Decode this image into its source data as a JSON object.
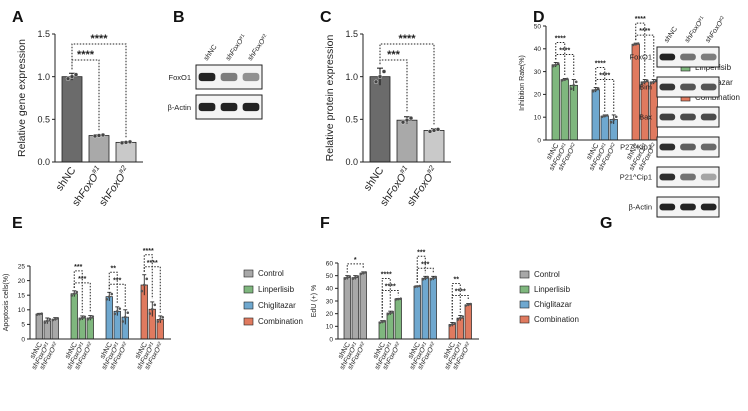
{
  "colors": {
    "dark_bar": "#6b6b6b",
    "mid_bar": "#a9a9a9",
    "light_bar": "#c9c9c9",
    "control": "#a8a8a8",
    "linperlisib": "#7fb77e",
    "chiglitazar": "#6fa8cf",
    "combination": "#e07a5f",
    "axis": "#222222"
  },
  "chart_data": [
    {
      "panel": "A",
      "type": "bar",
      "ylabel": "Relative gene expression",
      "ylim": [
        0,
        1.5
      ],
      "yticks": [
        "0.0",
        "0.5",
        "1.0",
        "1.5"
      ],
      "categories": [
        {
          "prefix": "sh",
          "gene": "NC",
          "sup": ""
        },
        {
          "prefix": "sh",
          "gene": "FoxO",
          "sup": "#1"
        },
        {
          "prefix": "sh",
          "gene": "FoxO",
          "sup": "#2"
        }
      ],
      "values": [
        1.0,
        0.31,
        0.23
      ],
      "errors": [
        0.04,
        0.01,
        0.01
      ],
      "significance": [
        {
          "from": 0,
          "to": 1,
          "label": "****"
        },
        {
          "from": 0,
          "to": 2,
          "label": "****"
        }
      ]
    },
    {
      "panel": "C",
      "type": "bar",
      "ylabel": "Relative protein expression",
      "ylim": [
        0,
        1.5
      ],
      "yticks": [
        "0.0",
        "0.5",
        "1.0",
        "1.5"
      ],
      "categories": [
        {
          "prefix": "sh",
          "gene": "NC",
          "sup": ""
        },
        {
          "prefix": "sh",
          "gene": "FoxO",
          "sup": "#1"
        },
        {
          "prefix": "sh",
          "gene": "FoxO",
          "sup": "#2"
        }
      ],
      "values": [
        1.0,
        0.49,
        0.37
      ],
      "errors": [
        0.1,
        0.04,
        0.02
      ],
      "significance": [
        {
          "from": 0,
          "to": 1,
          "label": "***"
        },
        {
          "from": 0,
          "to": 2,
          "label": "****"
        }
      ]
    },
    {
      "panel": "D",
      "type": "bar",
      "ylabel": "Inhibition Rate(%)",
      "ylim": [
        0,
        50
      ],
      "yticks": [
        "0",
        "10",
        "20",
        "30",
        "40",
        "50"
      ],
      "groups": [
        "Linperlisib",
        "Chiglitazar",
        "Combination"
      ],
      "categories": [
        {
          "prefix": "sh",
          "gene": "NC",
          "sup": ""
        },
        {
          "prefix": "sh",
          "gene": "FoxO",
          "sup": "#1"
        },
        {
          "prefix": "sh",
          "gene": "FoxO",
          "sup": "#2"
        }
      ],
      "series": [
        {
          "name": "Linperlisib",
          "values": [
            33,
            26.5,
            24
          ],
          "errors": [
            1,
            0.5,
            2.5
          ]
        },
        {
          "name": "Chiglitazar",
          "values": [
            22,
            10.5,
            9
          ],
          "errors": [
            1,
            0.5,
            2
          ]
        },
        {
          "name": "Combination",
          "values": [
            42,
            25.5,
            25.5
          ],
          "errors": [
            0.5,
            1,
            1
          ]
        }
      ],
      "significance": [
        {
          "group": 0,
          "pairs": [
            [
              0,
              1,
              "****"
            ],
            [
              0,
              2,
              "****"
            ]
          ]
        },
        {
          "group": 1,
          "pairs": [
            [
              0,
              1,
              "****"
            ],
            [
              0,
              2,
              "****"
            ]
          ]
        },
        {
          "group": 2,
          "pairs": [
            [
              0,
              1,
              "****"
            ],
            [
              0,
              2,
              "****"
            ]
          ]
        }
      ],
      "legend": [
        "Linperlisib",
        "Chiglitazar",
        "Combination"
      ]
    },
    {
      "panel": "E",
      "type": "bar",
      "ylabel": "Apoptosis cells(%)",
      "ylim": [
        0,
        25
      ],
      "yticks": [
        "0",
        "5",
        "10",
        "15",
        "20",
        "25"
      ],
      "groups": [
        "Control",
        "Linperlisib",
        "Chiglitazar",
        "Combination"
      ],
      "categories": [
        {
          "prefix": "sh",
          "gene": "NC",
          "sup": ""
        },
        {
          "prefix": "sh",
          "gene": "FoxO",
          "sup": "#1"
        },
        {
          "prefix": "sh",
          "gene": "FoxO",
          "sup": "#2"
        }
      ],
      "series": [
        {
          "name": "Control",
          "values": [
            8.5,
            6.2,
            6.8
          ],
          "errors": [
            0.3,
            1.0,
            0.5
          ]
        },
        {
          "name": "Linperlisib",
          "values": [
            15.5,
            7.2,
            7.2
          ],
          "errors": [
            1.0,
            0.7,
            0.8
          ]
        },
        {
          "name": "Chiglitazar",
          "values": [
            14.5,
            9.5,
            7.5
          ],
          "errors": [
            1.5,
            1.5,
            2.5
          ]
        },
        {
          "name": "Combination",
          "values": [
            18.5,
            10.2,
            6.7
          ],
          "errors": [
            3.5,
            2.5,
            1.2
          ]
        }
      ],
      "significance": [
        {
          "group": 1,
          "pairs": [
            [
              0,
              1,
              "***"
            ],
            [
              0,
              2,
              "***"
            ]
          ]
        },
        {
          "group": 2,
          "pairs": [
            [
              0,
              1,
              "**"
            ],
            [
              0,
              2,
              "***"
            ]
          ]
        },
        {
          "group": 3,
          "pairs": [
            [
              0,
              1,
              "****"
            ],
            [
              0,
              2,
              "****"
            ]
          ]
        }
      ],
      "legend": [
        "Control",
        "Linperlisib",
        "Chiglitazar",
        "Combination"
      ]
    },
    {
      "panel": "F",
      "type": "bar",
      "ylabel": "EdU (+) %",
      "ylim": [
        0,
        60
      ],
      "yticks": [
        "0",
        "10",
        "20",
        "30",
        "40",
        "50",
        "60"
      ],
      "groups": [
        "Control",
        "Linperlisib",
        "Chiglitazar",
        "Combination"
      ],
      "categories": [
        {
          "prefix": "sh",
          "gene": "NC",
          "sup": ""
        },
        {
          "prefix": "sh",
          "gene": "FoxO",
          "sup": "#1"
        },
        {
          "prefix": "sh",
          "gene": "FoxO",
          "sup": "#2"
        }
      ],
      "series": [
        {
          "name": "Control",
          "values": [
            48.5,
            48.5,
            52
          ],
          "errors": [
            1.5,
            1.5,
            1
          ]
        },
        {
          "name": "Linperlisib",
          "values": [
            13.5,
            20.5,
            31.5
          ],
          "errors": [
            1,
            1.5,
            0.5
          ]
        },
        {
          "name": "Chiglitazar",
          "values": [
            41.5,
            48,
            48
          ],
          "errors": [
            0.5,
            1.5,
            1.5
          ]
        },
        {
          "name": "Combination",
          "values": [
            11.5,
            16.5,
            27
          ],
          "errors": [
            1.5,
            2,
            1
          ]
        }
      ],
      "significance": [
        {
          "group": 0,
          "pairs": [
            [
              0,
              2,
              "*"
            ]
          ]
        },
        {
          "group": 1,
          "pairs": [
            [
              0,
              1,
              "****"
            ],
            [
              0,
              2,
              "****"
            ]
          ]
        },
        {
          "group": 2,
          "pairs": [
            [
              0,
              1,
              "***"
            ],
            [
              0,
              2,
              "***"
            ]
          ]
        },
        {
          "group": 3,
          "pairs": [
            [
              0,
              1,
              "**"
            ],
            [
              0,
              2,
              "****"
            ]
          ]
        }
      ],
      "legend": [
        "Control",
        "Linperlisib",
        "Chiglitazar",
        "Combination"
      ]
    }
  ],
  "blots": [
    {
      "panel": "B",
      "lanes": [
        {
          "prefix": "sh",
          "gene": "NC",
          "sup": ""
        },
        {
          "prefix": "sh",
          "gene": "FoxO",
          "sup": "#1"
        },
        {
          "prefix": "sh",
          "gene": "FoxO",
          "sup": "#2"
        }
      ],
      "rows": [
        {
          "label": "FoxO1",
          "intensity": [
            1.0,
            0.55,
            0.45
          ]
        },
        {
          "label": "β-Actin",
          "intensity": [
            1.0,
            1.0,
            1.0
          ]
        }
      ]
    },
    {
      "panel": "G",
      "lanes": [
        {
          "prefix": "sh",
          "gene": "NC",
          "sup": ""
        },
        {
          "prefix": "sh",
          "gene": "FoxO",
          "sup": "#1"
        },
        {
          "prefix": "sh",
          "gene": "FoxO",
          "sup": "#2"
        }
      ],
      "rows": [
        {
          "label": "FoxO1",
          "intensity": [
            1.0,
            0.6,
            0.55
          ]
        },
        {
          "label": "Bim",
          "intensity": [
            0.9,
            0.75,
            0.75
          ]
        },
        {
          "label": "Bax",
          "intensity": [
            0.85,
            0.8,
            0.8
          ]
        },
        {
          "label": "P27^Kip1",
          "intensity": [
            0.95,
            0.7,
            0.65
          ]
        },
        {
          "label": "P21^Cip1",
          "intensity": [
            0.95,
            0.6,
            0.35
          ]
        },
        {
          "label": "β-Actin",
          "intensity": [
            1.0,
            1.0,
            1.0
          ]
        }
      ]
    }
  ],
  "panel_letters": [
    "A",
    "B",
    "C",
    "D",
    "E",
    "F",
    "G"
  ]
}
